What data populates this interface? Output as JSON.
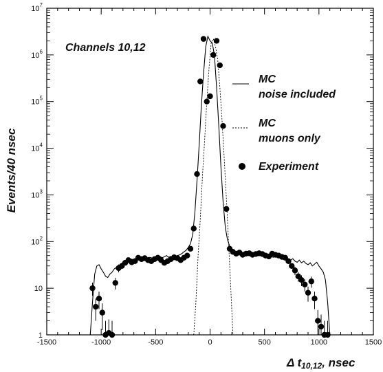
{
  "chart_data": {
    "type": "line",
    "xlabel": "Δ t",
    "xlabel_sub": "10,12",
    "xlabel_unit": ", nsec",
    "ylabel": "Events/40 nsec",
    "annotation": "Channels 10,12",
    "xlim": [
      -1500,
      1500
    ],
    "ylim": [
      1,
      10000000
    ],
    "yscale": "log",
    "x_ticks": [
      "-1500",
      "-1000",
      "-500",
      "0",
      "500",
      "1000",
      "1500"
    ],
    "y_ticks": [
      {
        "base": "1",
        "exp": ""
      },
      {
        "base": "10",
        "exp": ""
      },
      {
        "base": "10",
        "exp": "2"
      },
      {
        "base": "10",
        "exp": "3"
      },
      {
        "base": "10",
        "exp": "4"
      },
      {
        "base": "10",
        "exp": "5"
      },
      {
        "base": "10",
        "exp": "6"
      },
      {
        "base": "10",
        "exp": "7"
      }
    ],
    "legend_position": "right",
    "series": [
      {
        "name_line1": "MC",
        "name_line2": "noise included",
        "style": "solid",
        "x": [
          -1100,
          -1080,
          -1060,
          -1040,
          -1020,
          -1000,
          -980,
          -960,
          -940,
          -920,
          -900,
          -880,
          -860,
          -840,
          -820,
          -800,
          -780,
          -760,
          -740,
          -720,
          -700,
          -680,
          -660,
          -640,
          -620,
          -600,
          -580,
          -560,
          -540,
          -520,
          -500,
          -480,
          -460,
          -440,
          -420,
          -400,
          -380,
          -360,
          -340,
          -320,
          -300,
          -280,
          -260,
          -240,
          -220,
          -200,
          -180,
          -160,
          -140,
          -120,
          -100,
          -80,
          -60,
          -40,
          -20,
          0,
          20,
          40,
          60,
          80,
          100,
          120,
          140,
          160,
          180,
          200,
          220,
          240,
          260,
          280,
          300,
          320,
          340,
          360,
          380,
          400,
          420,
          440,
          460,
          480,
          500,
          520,
          540,
          560,
          580,
          600,
          620,
          640,
          660,
          680,
          700,
          720,
          740,
          760,
          780,
          800,
          820,
          840,
          860,
          880,
          900,
          920,
          940,
          960,
          980,
          1000,
          1020,
          1040,
          1060,
          1080,
          1100
        ],
        "y": [
          1,
          5,
          20,
          30,
          32,
          26,
          22,
          18,
          17,
          20,
          22,
          26,
          28,
          30,
          33,
          36,
          35,
          38,
          40,
          42,
          40,
          44,
          45,
          43,
          46,
          48,
          44,
          46,
          45,
          42,
          44,
          46,
          48,
          45,
          47,
          50,
          46,
          48,
          45,
          47,
          50,
          52,
          55,
          60,
          65,
          75,
          90,
          140,
          400,
          2000,
          12000,
          80000,
          400000,
          1500000,
          2500000,
          2000000,
          1800000,
          1000000,
          200000,
          30000,
          4000,
          700,
          200,
          110,
          80,
          70,
          65,
          60,
          58,
          55,
          52,
          55,
          53,
          56,
          58,
          54,
          50,
          55,
          52,
          56,
          54,
          50,
          52,
          48,
          46,
          50,
          45,
          48,
          44,
          46,
          44,
          42,
          40,
          43,
          38,
          36,
          40,
          35,
          38,
          34,
          32,
          35,
          30,
          33,
          36,
          30,
          26,
          22,
          15,
          5,
          1
        ]
      },
      {
        "name_line1": "MC",
        "name_line2": "muons only",
        "style": "dashed",
        "x": [
          -150,
          -130,
          -110,
          -90,
          -70,
          -50,
          -30,
          -10,
          10,
          30,
          50,
          70,
          90,
          110,
          130,
          150,
          170,
          190,
          210
        ],
        "y": [
          1,
          5,
          50,
          300,
          2500,
          15000,
          100000,
          500000,
          1800000,
          2200000,
          1500000,
          800000,
          200000,
          40000,
          6000,
          800,
          100,
          10,
          1
        ]
      }
    ],
    "experiment": {
      "name": "Experiment",
      "x": [
        -1080,
        -1050,
        -1020,
        -990,
        -960,
        -930,
        -900,
        -870,
        -840,
        -810,
        -780,
        -750,
        -720,
        -690,
        -660,
        -630,
        -600,
        -570,
        -540,
        -510,
        -480,
        -450,
        -420,
        -390,
        -360,
        -330,
        -300,
        -270,
        -240,
        -210,
        -180,
        -150,
        -120,
        -90,
        -60,
        -30,
        0,
        30,
        60,
        90,
        120,
        150,
        180,
        210,
        240,
        270,
        300,
        330,
        360,
        390,
        420,
        450,
        480,
        510,
        540,
        570,
        600,
        630,
        660,
        690,
        720,
        750,
        780,
        810,
        840,
        870,
        900,
        930,
        960,
        990,
        1020,
        1050,
        1080
      ],
      "y": [
        10,
        4,
        6,
        3,
        1,
        1.1,
        1,
        13,
        27,
        30,
        35,
        40,
        36,
        38,
        45,
        42,
        44,
        40,
        38,
        42,
        45,
        40,
        35,
        38,
        42,
        46,
        44,
        40,
        45,
        50,
        70,
        190,
        2800,
        270000,
        2200000,
        100000,
        130000,
        1000000,
        2000000,
        600000,
        30000,
        500,
        70,
        60,
        55,
        58,
        52,
        55,
        56,
        52,
        54,
        56,
        54,
        50,
        48,
        55,
        52,
        50,
        47,
        45,
        38,
        30,
        24,
        18,
        15,
        12,
        8,
        14,
        6,
        2,
        1.5,
        1,
        1
      ]
    }
  }
}
